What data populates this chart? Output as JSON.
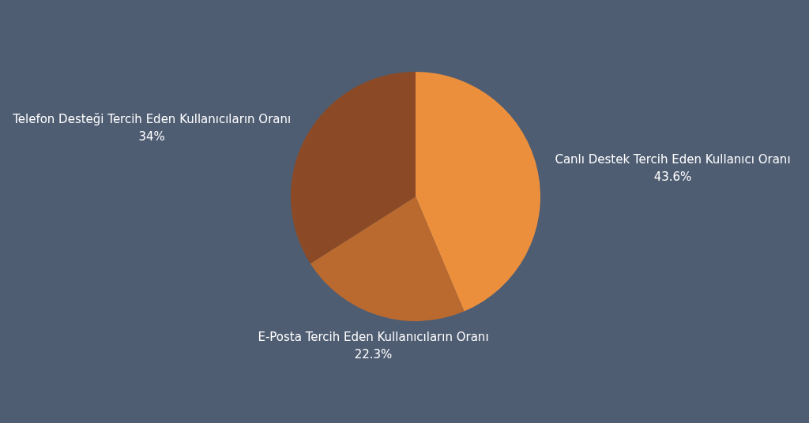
{
  "chart_data": {
    "type": "pie",
    "categories": [
      "Canlı Destek Tercih Eden Kullanıcı Oranı",
      "E-Posta Tercih Eden Kullanıcıların Oranı",
      "Telefon Desteği Tercih Eden Kullanıcıların Oranı"
    ],
    "values": [
      43.6,
      22.3,
      34
    ],
    "value_labels": [
      "43.6%",
      "22.3%",
      "34%"
    ],
    "colors": [
      "#eb8f3c",
      "#bb6a2f",
      "#8b4a25"
    ],
    "legend": false
  }
}
